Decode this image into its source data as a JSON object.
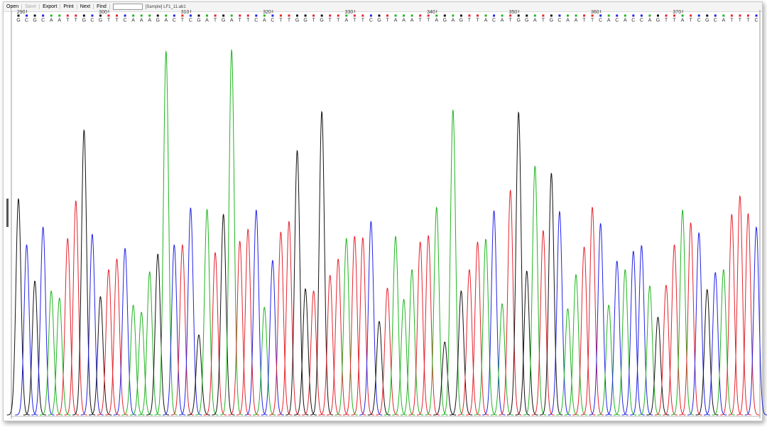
{
  "toolbar": {
    "buttons": [
      {
        "label": "Open",
        "enabled": true
      },
      {
        "label": "Save",
        "enabled": false
      },
      {
        "label": "Export",
        "enabled": true
      },
      {
        "label": "Print",
        "enabled": true
      },
      {
        "label": "Next",
        "enabled": true
      },
      {
        "label": "Find",
        "enabled": true
      }
    ],
    "sample": "[Sample] LF1_11.ab1"
  },
  "chart_data": {
    "type": "chromatogram",
    "ruler_ticks": [
      290,
      300,
      310,
      320,
      330,
      340,
      350,
      360,
      370
    ],
    "bases": [
      "G",
      "C",
      "G",
      "C",
      "A",
      "A",
      "T",
      "T",
      "G",
      "C",
      "G",
      "T",
      "T",
      "C",
      "A",
      "A",
      "A",
      "G",
      "A",
      "C",
      "T",
      "C",
      "G",
      "A",
      "T",
      "G",
      "A",
      "T",
      "T",
      "C",
      "A",
      "C",
      "T",
      "T",
      "G",
      "G",
      "T",
      "G",
      "T",
      "T",
      "A",
      "T",
      "T",
      "C",
      "G",
      "T",
      "A",
      "A",
      "A",
      "T",
      "T",
      "A",
      "G",
      "A",
      "G",
      "T",
      "T",
      "A",
      "C",
      "A",
      "T",
      "G",
      "G",
      "A",
      "T",
      "G",
      "C",
      "A",
      "A",
      "T",
      "T",
      "C",
      "A",
      "C",
      "A",
      "C",
      "C",
      "A",
      "G",
      "T",
      "T",
      "A",
      "T",
      "C",
      "G",
      "C",
      "A",
      "T",
      "T",
      "T",
      "C"
    ],
    "heights": [
      610,
      480,
      378,
      530,
      350,
      330,
      498,
      604,
      804,
      510,
      334,
      410,
      440,
      470,
      310,
      290,
      404,
      454,
      1026,
      480,
      480,
      584,
      226,
      580,
      458,
      566,
      1030,
      490,
      524,
      578,
      304,
      436,
      516,
      546,
      746,
      356,
      350,
      856,
      394,
      440,
      498,
      504,
      500,
      546,
      264,
      358,
      504,
      326,
      410,
      488,
      506,
      586,
      206,
      860,
      350,
      410,
      488,
      496,
      576,
      314,
      634,
      854,
      406,
      702,
      520,
      682,
      574,
      300,
      396,
      474,
      586,
      540,
      310,
      434,
      410,
      462,
      478,
      364,
      276,
      366,
      480,
      578,
      542,
      514,
      354,
      402,
      410,
      566,
      618,
      568,
      530
    ],
    "ylim": [
      0,
      1130
    ],
    "colors": {
      "A": "#1fb51f",
      "C": "#2222e6",
      "G": "#111111",
      "T": "#e5222b"
    }
  }
}
